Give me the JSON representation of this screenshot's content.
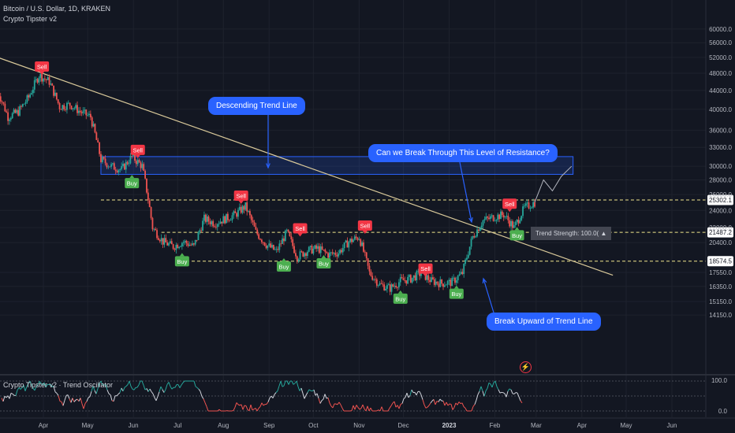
{
  "header": {
    "symbol": "Bitcoin / U.S. Dollar, 1D, KRAKEN",
    "indicator": "Crypto Tipster v2"
  },
  "oscillator": {
    "title": "Crypto Tipster v2 · Trend Oscillator",
    "ticks": [
      "100.0",
      "0.0"
    ]
  },
  "annotations": {
    "descending": "Descending Trend Line",
    "resistance": "Can we Break Through This Level of Resistance?",
    "breakup": "Break Upward of Trend Line"
  },
  "trend_strength": "Trend Strength: 100.0(",
  "chart_data": {
    "type": "candlestick",
    "symbol": "BTC/USD",
    "timeframe": "1D",
    "x_ticks": [
      "Apr",
      "May",
      "Jun",
      "Jul",
      "Aug",
      "Sep",
      "Oct",
      "Nov",
      "Dec",
      "2023",
      "Feb",
      "Mar",
      "Apr",
      "May",
      "Jun"
    ],
    "y_ticks": [
      "60000.0",
      "56000.0",
      "52000.0",
      "48000.0",
      "44000.0",
      "40000.0",
      "36000.0",
      "33000.0",
      "30000.0",
      "28000.0",
      "26000.0",
      "24000.0",
      "22000.0",
      "20400.0",
      "17550.0",
      "16350.0",
      "15150.0",
      "14150.0"
    ],
    "price_path": [
      {
        "date": "2022-03-01",
        "price": 44000
      },
      {
        "date": "2022-03-08",
        "price": 38500
      },
      {
        "date": "2022-03-15",
        "price": 39500
      },
      {
        "date": "2022-03-22",
        "price": 42500
      },
      {
        "date": "2022-03-29",
        "price": 47500
      },
      {
        "date": "2022-04-05",
        "price": 46000
      },
      {
        "date": "2022-04-12",
        "price": 40500
      },
      {
        "date": "2022-04-19",
        "price": 41000
      },
      {
        "date": "2022-04-26",
        "price": 39500
      },
      {
        "date": "2022-05-03",
        "price": 38500
      },
      {
        "date": "2022-05-10",
        "price": 31000
      },
      {
        "date": "2022-05-17",
        "price": 30000
      },
      {
        "date": "2022-05-24",
        "price": 29500
      },
      {
        "date": "2022-05-31",
        "price": 31500
      },
      {
        "date": "2022-06-07",
        "price": 30000
      },
      {
        "date": "2022-06-14",
        "price": 22000
      },
      {
        "date": "2022-06-21",
        "price": 20500
      },
      {
        "date": "2022-06-28",
        "price": 20000
      },
      {
        "date": "2022-07-05",
        "price": 20500
      },
      {
        "date": "2022-07-12",
        "price": 20000
      },
      {
        "date": "2022-07-19",
        "price": 23000
      },
      {
        "date": "2022-07-26",
        "price": 22500
      },
      {
        "date": "2022-08-02",
        "price": 23000
      },
      {
        "date": "2022-08-09",
        "price": 23500
      },
      {
        "date": "2022-08-16",
        "price": 24500
      },
      {
        "date": "2022-08-23",
        "price": 21500
      },
      {
        "date": "2022-08-30",
        "price": 20200
      },
      {
        "date": "2022-09-06",
        "price": 19500
      },
      {
        "date": "2022-09-13",
        "price": 21500
      },
      {
        "date": "2022-09-20",
        "price": 19000
      },
      {
        "date": "2022-09-27",
        "price": 19600
      },
      {
        "date": "2022-10-04",
        "price": 19800
      },
      {
        "date": "2022-10-11",
        "price": 19200
      },
      {
        "date": "2022-10-18",
        "price": 19400
      },
      {
        "date": "2022-10-25",
        "price": 20500
      },
      {
        "date": "2022-11-01",
        "price": 21000
      },
      {
        "date": "2022-11-08",
        "price": 17500
      },
      {
        "date": "2022-11-15",
        "price": 16500
      },
      {
        "date": "2022-11-22",
        "price": 16200
      },
      {
        "date": "2022-11-29",
        "price": 16800
      },
      {
        "date": "2022-12-06",
        "price": 17000
      },
      {
        "date": "2022-12-13",
        "price": 17500
      },
      {
        "date": "2022-12-20",
        "price": 16800
      },
      {
        "date": "2022-12-27",
        "price": 16600
      },
      {
        "date": "2023-01-03",
        "price": 16700
      },
      {
        "date": "2023-01-10",
        "price": 17500
      },
      {
        "date": "2023-01-17",
        "price": 21000
      },
      {
        "date": "2023-01-24",
        "price": 22800
      },
      {
        "date": "2023-01-31",
        "price": 23200
      },
      {
        "date": "2023-02-07",
        "price": 23500
      },
      {
        "date": "2023-02-14",
        "price": 22000
      },
      {
        "date": "2023-02-21",
        "price": 24300
      },
      {
        "date": "2023-02-28",
        "price": 25000
      }
    ],
    "projection": [
      {
        "date": "2023-02-28",
        "price": 25000
      },
      {
        "date": "2023-03-06",
        "price": 28000
      },
      {
        "date": "2023-03-12",
        "price": 26500
      },
      {
        "date": "2023-03-18",
        "price": 28500
      },
      {
        "date": "2023-03-25",
        "price": 30000
      }
    ],
    "horizontal_levels": [
      25302.1,
      21487.2,
      18574.5
    ],
    "resistance_zone": {
      "from": "2022-05-10",
      "to": "2023-03-26",
      "low": 28800,
      "high": 31500
    },
    "trend_line": {
      "from": {
        "date": "2022-03-01",
        "price": 52000
      },
      "to": {
        "date": "2023-04-22",
        "price": 17300
      }
    },
    "signals": [
      {
        "type": "Sell",
        "date": "2022-03-31",
        "price": 48000
      },
      {
        "type": "Sell",
        "date": "2022-06-04",
        "price": 31500
      },
      {
        "type": "Buy",
        "date": "2022-05-31",
        "price": 28500
      },
      {
        "type": "Buy",
        "date": "2022-07-04",
        "price": 19200
      },
      {
        "type": "Sell",
        "date": "2022-08-13",
        "price": 25000
      },
      {
        "type": "Buy",
        "date": "2022-09-11",
        "price": 18700
      },
      {
        "type": "Sell",
        "date": "2022-09-22",
        "price": 21200
      },
      {
        "type": "Buy",
        "date": "2022-10-08",
        "price": 19000
      },
      {
        "type": "Sell",
        "date": "2022-11-05",
        "price": 21500
      },
      {
        "type": "Buy",
        "date": "2022-11-29",
        "price": 15900
      },
      {
        "type": "Sell",
        "date": "2022-12-16",
        "price": 17300
      },
      {
        "type": "Buy",
        "date": "2023-01-06",
        "price": 16300
      },
      {
        "type": "Sell",
        "date": "2023-02-11",
        "price": 24000
      },
      {
        "type": "Buy",
        "date": "2023-02-16",
        "price": 21900
      }
    ]
  }
}
